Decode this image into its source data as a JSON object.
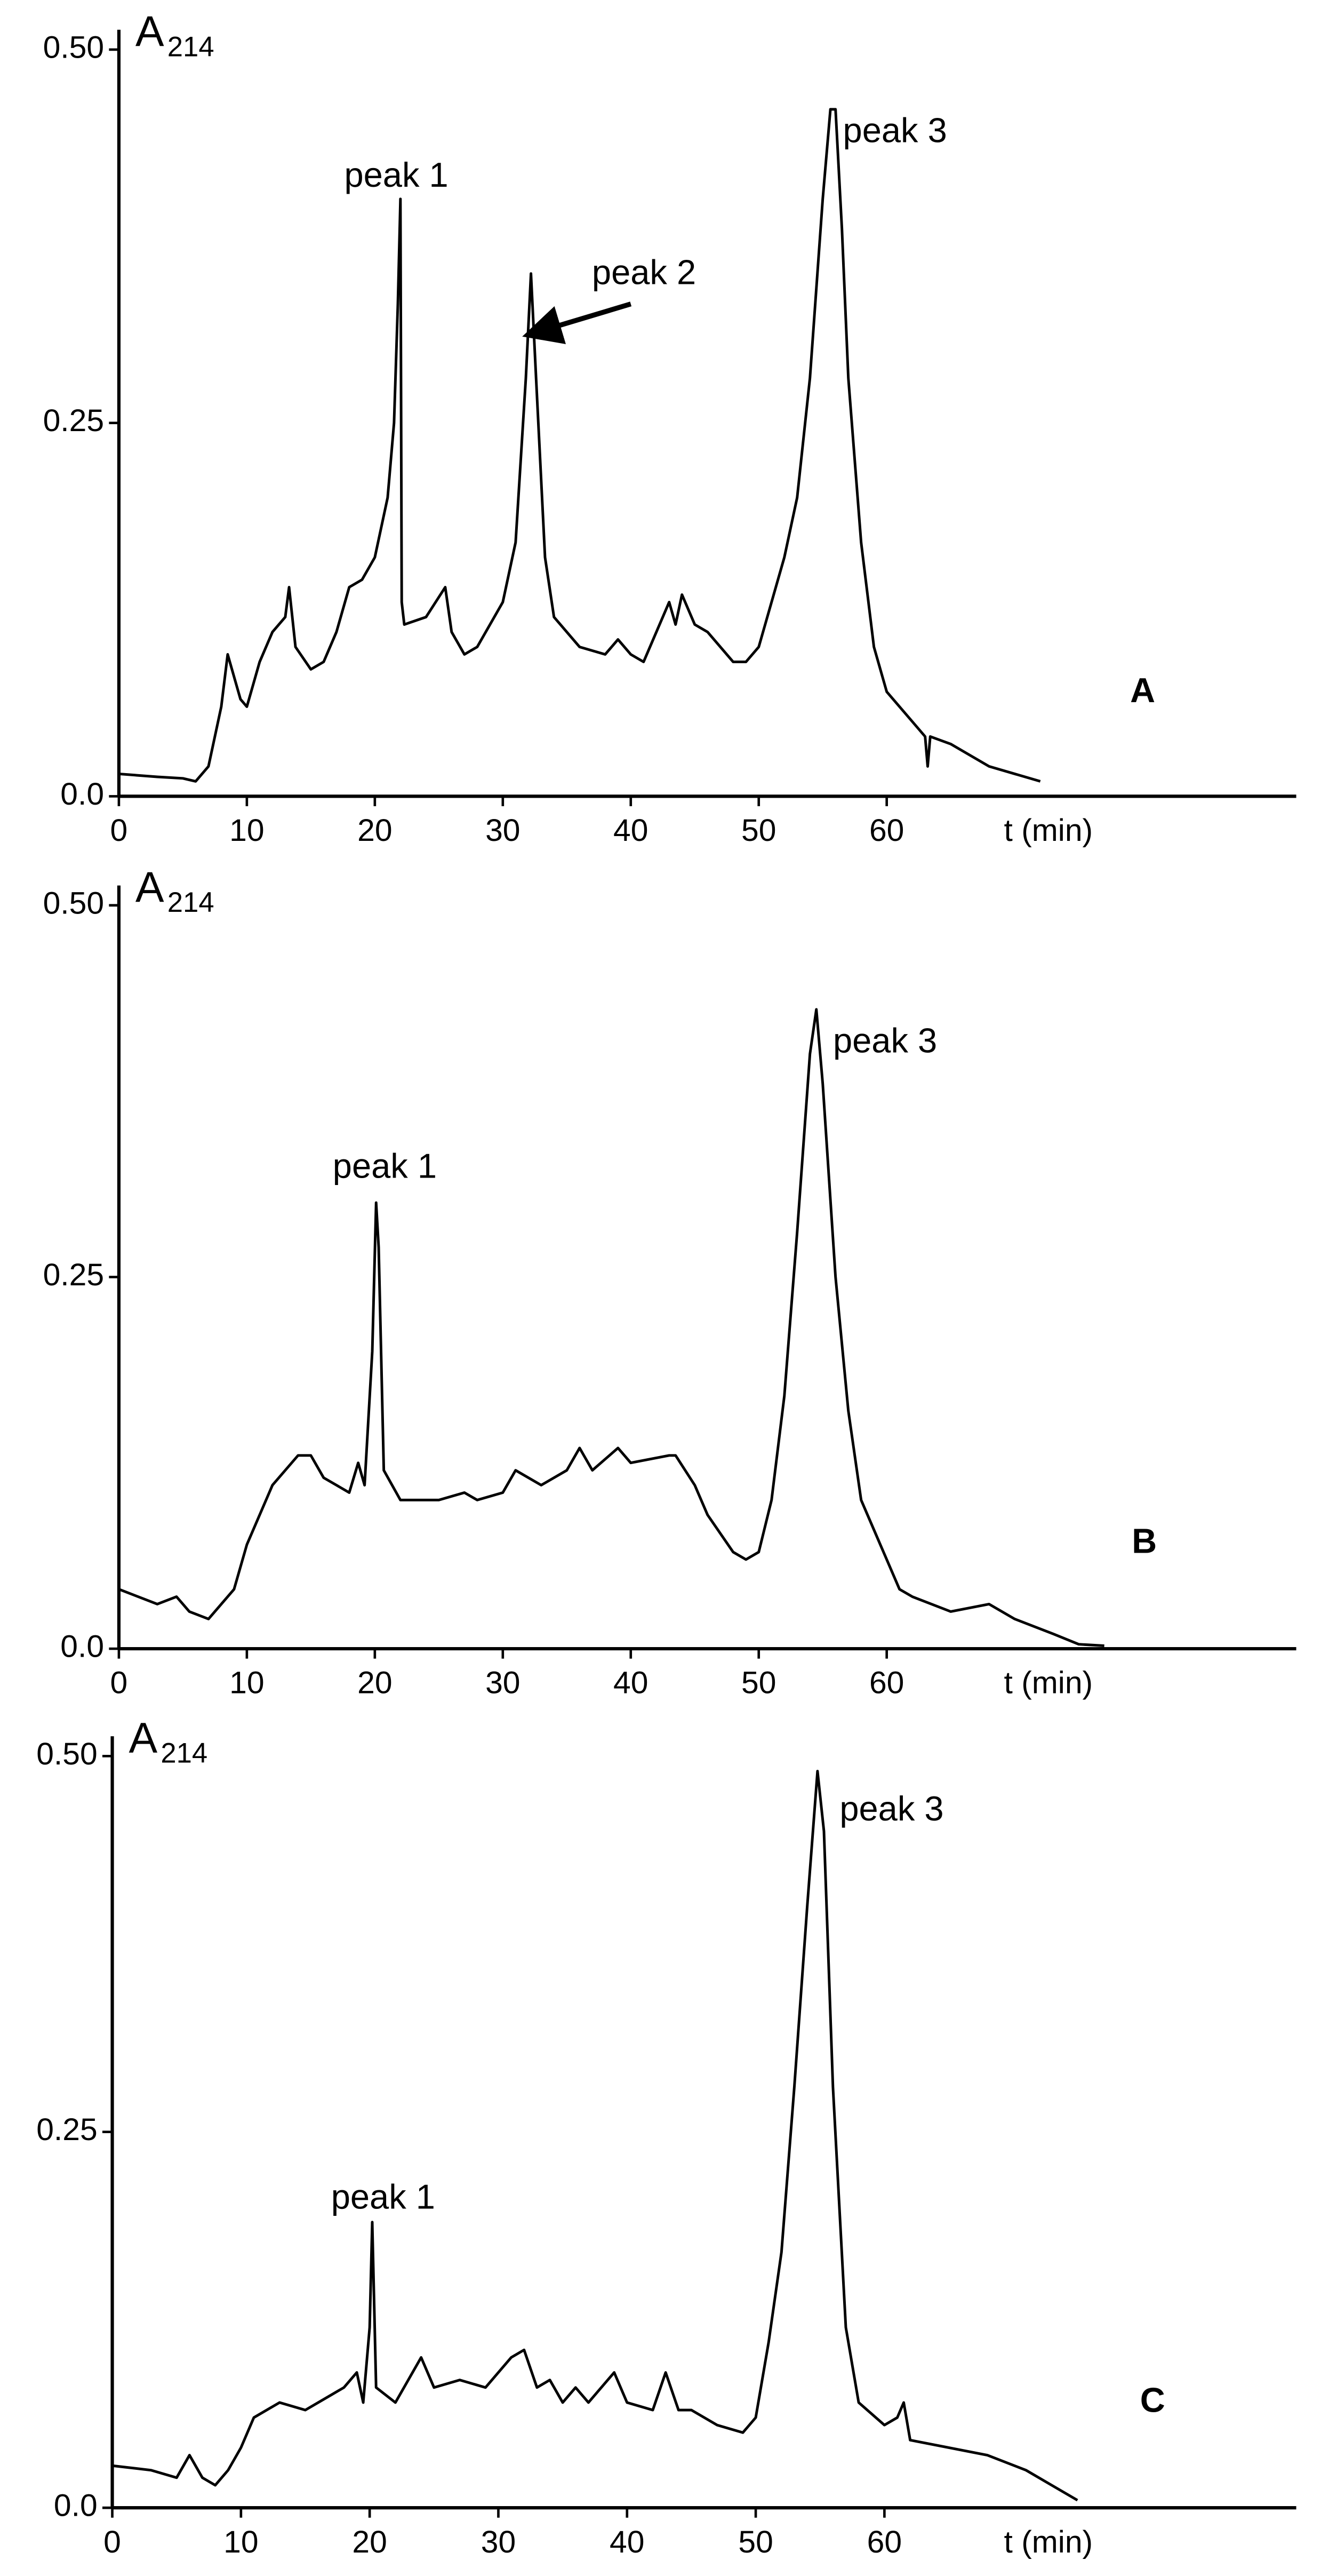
{
  "chart_data": [
    {
      "type": "line",
      "y_label": "A",
      "y_label_subscript": "214",
      "x_label": "t (min)",
      "panel_label": "A",
      "annotations": [
        "peak 1",
        "peak 2",
        "peak 3"
      ],
      "xlim": [
        0,
        92
      ],
      "xticks": [
        0,
        10,
        20,
        30,
        40,
        50,
        60
      ],
      "ylim": [
        0,
        0.5
      ],
      "yticks": [
        {
          "value": 0,
          "label": "0.0"
        },
        0.25,
        {
          "value": 0.5,
          "label": "0.50"
        }
      ],
      "color": "#000000",
      "x": [
        0,
        3,
        5,
        6,
        7,
        8,
        8.5,
        9,
        9.5,
        10,
        11,
        12,
        13,
        13.3,
        13.8,
        15,
        16,
        17,
        18,
        19,
        20,
        21,
        21.5,
        21.8,
        22,
        22.1,
        22.3,
        24,
        25.5,
        26,
        27,
        28,
        30,
        31,
        31.8,
        32.2,
        32.6,
        33.3,
        34,
        36,
        38,
        39,
        40,
        41,
        42,
        43,
        43.5,
        44,
        45,
        46,
        47,
        48,
        49,
        50,
        51,
        52,
        53,
        54,
        55,
        55.6,
        56,
        56.5,
        57,
        58,
        59,
        60,
        62,
        63,
        63.2,
        63.4,
        65,
        68,
        72
      ],
      "values": [
        0.015,
        0.013,
        0.012,
        0.01,
        0.02,
        0.06,
        0.095,
        0.08,
        0.065,
        0.06,
        0.09,
        0.11,
        0.12,
        0.14,
        0.1,
        0.085,
        0.09,
        0.11,
        0.14,
        0.145,
        0.16,
        0.2,
        0.25,
        0.33,
        0.4,
        0.13,
        0.115,
        0.12,
        0.14,
        0.11,
        0.095,
        0.1,
        0.13,
        0.17,
        0.28,
        0.35,
        0.28,
        0.16,
        0.12,
        0.1,
        0.095,
        0.105,
        0.095,
        0.09,
        0.11,
        0.13,
        0.115,
        0.135,
        0.115,
        0.11,
        0.1,
        0.09,
        0.09,
        0.1,
        0.13,
        0.16,
        0.2,
        0.28,
        0.4,
        0.46,
        0.46,
        0.38,
        0.28,
        0.17,
        0.1,
        0.07,
        0.05,
        0.04,
        0.02,
        0.04,
        0.035,
        0.02,
        0.01
      ]
    },
    {
      "type": "line",
      "y_label": "A",
      "y_label_subscript": "214",
      "x_label": "t (min)",
      "panel_label": "B",
      "annotations": [
        "peak 1",
        "peak 3"
      ],
      "xlim": [
        0,
        92
      ],
      "xticks": [
        0,
        10,
        20,
        30,
        40,
        50,
        60
      ],
      "ylim": [
        0,
        0.5
      ],
      "yticks": [
        {
          "value": 0,
          "label": "0.0"
        },
        0.25,
        {
          "value": 0.5,
          "label": "0.50"
        }
      ],
      "color": "#000000",
      "x": [
        0,
        3,
        4.5,
        5.5,
        7,
        8,
        9,
        10,
        12,
        14,
        15,
        16,
        17,
        18,
        18.7,
        19.2,
        19.8,
        20.1,
        20.3,
        20.7,
        22,
        25,
        27,
        28,
        30,
        31,
        33,
        35,
        36,
        37,
        39,
        40,
        43,
        43.5,
        45,
        46,
        48,
        49,
        50,
        51,
        52,
        53,
        54,
        54.5,
        55,
        56,
        57,
        58,
        60,
        61,
        62,
        65,
        68,
        70,
        73,
        75,
        77
      ],
      "values": [
        0.04,
        0.03,
        0.035,
        0.025,
        0.02,
        0.03,
        0.04,
        0.07,
        0.11,
        0.13,
        0.13,
        0.115,
        0.11,
        0.105,
        0.125,
        0.11,
        0.2,
        0.3,
        0.27,
        0.12,
        0.1,
        0.1,
        0.105,
        0.1,
        0.105,
        0.12,
        0.11,
        0.12,
        0.135,
        0.12,
        0.135,
        0.125,
        0.13,
        0.13,
        0.11,
        0.09,
        0.065,
        0.06,
        0.065,
        0.1,
        0.17,
        0.28,
        0.4,
        0.43,
        0.38,
        0.25,
        0.16,
        0.1,
        0.06,
        0.04,
        0.035,
        0.025,
        0.03,
        0.02,
        0.01,
        0.003,
        0.002
      ]
    },
    {
      "type": "line",
      "y_label": "A",
      "y_label_subscript": "214",
      "x_label": "t (min)",
      "panel_label": "C",
      "annotations": [
        "peak 1",
        "peak 3"
      ],
      "xlim": [
        0,
        92
      ],
      "xticks": [
        0,
        10,
        20,
        30,
        40,
        50,
        60
      ],
      "ylim": [
        0,
        0.5
      ],
      "yticks": [
        {
          "value": 0,
          "label": "0.0"
        },
        0.25,
        {
          "value": 0.5,
          "label": "0.50"
        }
      ],
      "color": "#000000",
      "x": [
        0,
        3,
        5,
        6,
        7,
        8,
        9,
        10,
        11,
        13,
        15,
        17,
        18,
        19,
        19.5,
        20,
        20.2,
        20.5,
        22,
        24,
        25,
        27,
        29,
        31,
        32,
        33,
        34,
        35,
        36,
        37,
        39,
        40,
        42,
        43,
        44,
        45,
        47,
        49,
        50,
        51,
        52,
        53,
        54,
        54.8,
        55.3,
        56,
        57,
        58,
        60,
        61,
        61.5,
        62,
        65,
        68,
        71,
        73,
        75
      ],
      "values": [
        0.028,
        0.025,
        0.02,
        0.035,
        0.02,
        0.015,
        0.025,
        0.04,
        0.06,
        0.07,
        0.065,
        0.075,
        0.08,
        0.09,
        0.07,
        0.12,
        0.19,
        0.08,
        0.07,
        0.1,
        0.08,
        0.085,
        0.08,
        0.1,
        0.105,
        0.08,
        0.085,
        0.07,
        0.08,
        0.07,
        0.09,
        0.07,
        0.065,
        0.09,
        0.065,
        0.065,
        0.055,
        0.05,
        0.06,
        0.11,
        0.17,
        0.28,
        0.4,
        0.49,
        0.45,
        0.28,
        0.12,
        0.07,
        0.055,
        0.06,
        0.07,
        0.045,
        0.04,
        0.035,
        0.025,
        0.015,
        0.005
      ]
    }
  ]
}
